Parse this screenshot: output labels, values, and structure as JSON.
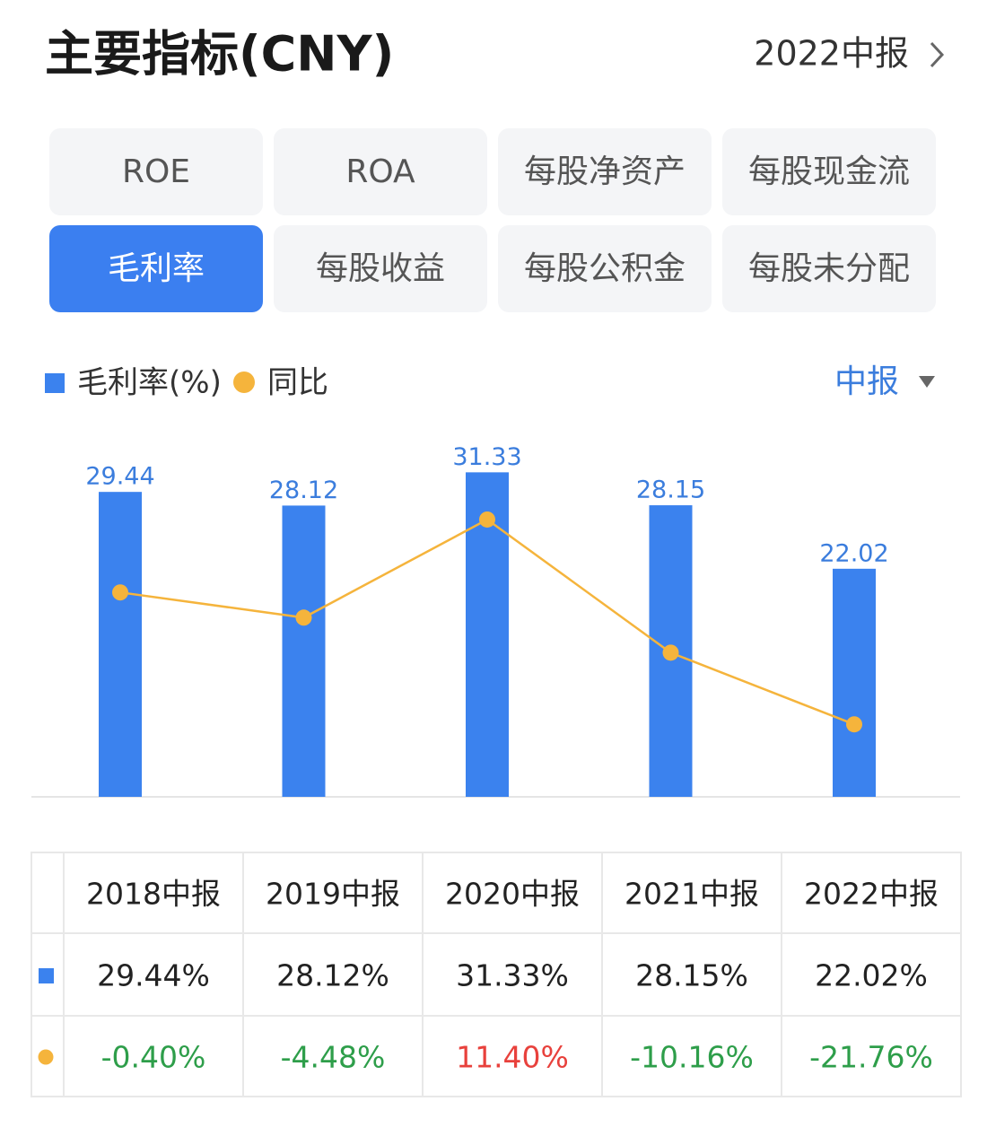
{
  "header": {
    "title": "主要指标(CNY)",
    "period": "2022中报"
  },
  "tabs": [
    "ROE",
    "ROA",
    "每股净资产",
    "每股现金流",
    "毛利率",
    "每股收益",
    "每股公积金",
    "每股未分配"
  ],
  "active_tab": 4,
  "selector": "中报",
  "chart_data": {
    "type": "bar_line",
    "categories": [
      "2018中报",
      "2019中报",
      "2020中报",
      "2021中报",
      "2022中报"
    ],
    "series": [
      {
        "name": "毛利率(%)",
        "color": "#3b82ee",
        "type": "bar",
        "axis": "y",
        "values": [
          29.44,
          28.12,
          31.33,
          28.15,
          22.02
        ],
        "value_labels": [
          "29.44%",
          "28.12%",
          "31.33%",
          "28.15%",
          "22.02%"
        ]
      },
      {
        "name": "同比",
        "color": "#f5b43c",
        "type": "line",
        "axis": "y2",
        "values": [
          -0.4,
          -4.48,
          11.4,
          -10.16,
          -21.76
        ],
        "value_labels": [
          "-0.40%",
          "-4.48%",
          "11.40%",
          "-10.16%",
          "-21.76%"
        ]
      }
    ],
    "ylim": [
      0,
      35
    ],
    "y2lim": [
      -33.5,
      25.2
    ]
  }
}
